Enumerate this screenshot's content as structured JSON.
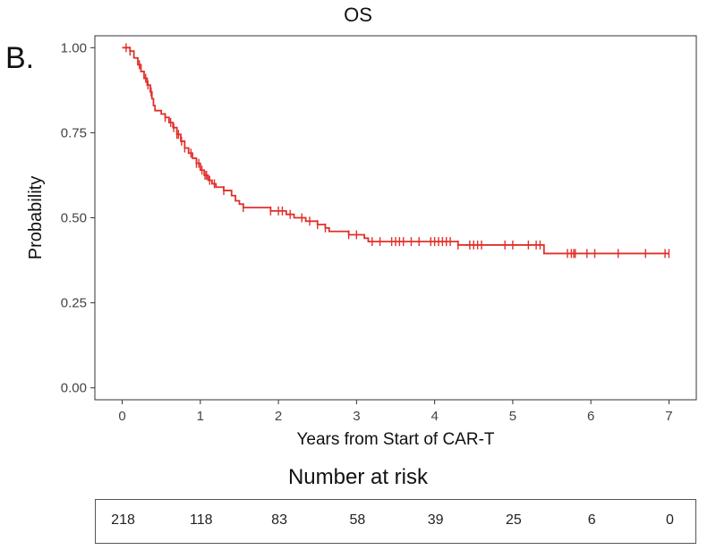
{
  "panel_label": "B.",
  "risk_table": {
    "title": "Number at risk",
    "times": [
      0,
      1,
      2,
      3,
      4,
      5,
      6,
      7
    ],
    "values": [
      "218",
      "118",
      "83",
      "58",
      "39",
      "25",
      "6",
      "0"
    ]
  },
  "chart_data": {
    "type": "line",
    "title": "OS",
    "xlabel": "Years from Start of CAR-T",
    "ylabel": "Probability",
    "xlim": [
      -0.35,
      7.35
    ],
    "ylim": [
      -0.035,
      1.035
    ],
    "x_ticks": [
      0,
      1,
      2,
      3,
      4,
      5,
      6,
      7
    ],
    "x_tick_labels": [
      "0",
      "1",
      "2",
      "3",
      "4",
      "5",
      "6",
      "7"
    ],
    "y_ticks": [
      0.0,
      0.25,
      0.5,
      0.75,
      1.0
    ],
    "y_tick_labels": [
      "0.00",
      "0.25",
      "0.50",
      "0.75",
      "1.00"
    ],
    "grid": false,
    "series": [
      {
        "color": "#e0302a",
        "steps": [
          [
            0,
            1.0
          ],
          [
            0.1,
            0.99
          ],
          [
            0.15,
            0.97
          ],
          [
            0.2,
            0.95
          ],
          [
            0.24,
            0.93
          ],
          [
            0.28,
            0.91
          ],
          [
            0.32,
            0.89
          ],
          [
            0.36,
            0.87
          ],
          [
            0.38,
            0.85
          ],
          [
            0.4,
            0.83
          ],
          [
            0.42,
            0.815
          ],
          [
            0.5,
            0.805
          ],
          [
            0.55,
            0.795
          ],
          [
            0.6,
            0.78
          ],
          [
            0.65,
            0.765
          ],
          [
            0.7,
            0.745
          ],
          [
            0.75,
            0.725
          ],
          [
            0.8,
            0.705
          ],
          [
            0.85,
            0.69
          ],
          [
            0.9,
            0.675
          ],
          [
            0.95,
            0.66
          ],
          [
            1.0,
            0.64
          ],
          [
            1.05,
            0.625
          ],
          [
            1.1,
            0.61
          ],
          [
            1.15,
            0.6
          ],
          [
            1.2,
            0.59
          ],
          [
            1.3,
            0.58
          ],
          [
            1.4,
            0.565
          ],
          [
            1.45,
            0.55
          ],
          [
            1.5,
            0.54
          ],
          [
            1.55,
            0.53
          ],
          [
            1.9,
            0.52
          ],
          [
            2.1,
            0.51
          ],
          [
            2.2,
            0.5
          ],
          [
            2.35,
            0.49
          ],
          [
            2.5,
            0.48
          ],
          [
            2.6,
            0.47
          ],
          [
            2.65,
            0.46
          ],
          [
            2.9,
            0.45
          ],
          [
            3.1,
            0.44
          ],
          [
            3.15,
            0.43
          ],
          [
            4.3,
            0.42
          ],
          [
            5.4,
            0.395
          ]
        ],
        "censor_times": [
          0.05,
          0.1,
          0.22,
          0.3,
          0.33,
          0.37,
          0.55,
          0.62,
          0.66,
          0.7,
          0.72,
          0.76,
          0.8,
          0.88,
          0.95,
          0.98,
          1.02,
          1.06,
          1.08,
          1.12,
          1.18,
          1.3,
          1.55,
          1.9,
          2.0,
          2.05,
          2.15,
          2.3,
          2.4,
          2.5,
          2.6,
          2.9,
          3.0,
          3.2,
          3.3,
          3.45,
          3.5,
          3.55,
          3.6,
          3.7,
          3.8,
          3.95,
          4.0,
          4.05,
          4.1,
          4.15,
          4.2,
          4.3,
          4.45,
          4.5,
          4.55,
          4.6,
          4.9,
          5.0,
          5.2,
          5.3,
          5.35,
          5.7,
          5.75,
          5.78,
          5.8,
          5.95,
          6.05,
          6.35,
          6.7,
          6.95,
          7.0
        ]
      }
    ]
  }
}
